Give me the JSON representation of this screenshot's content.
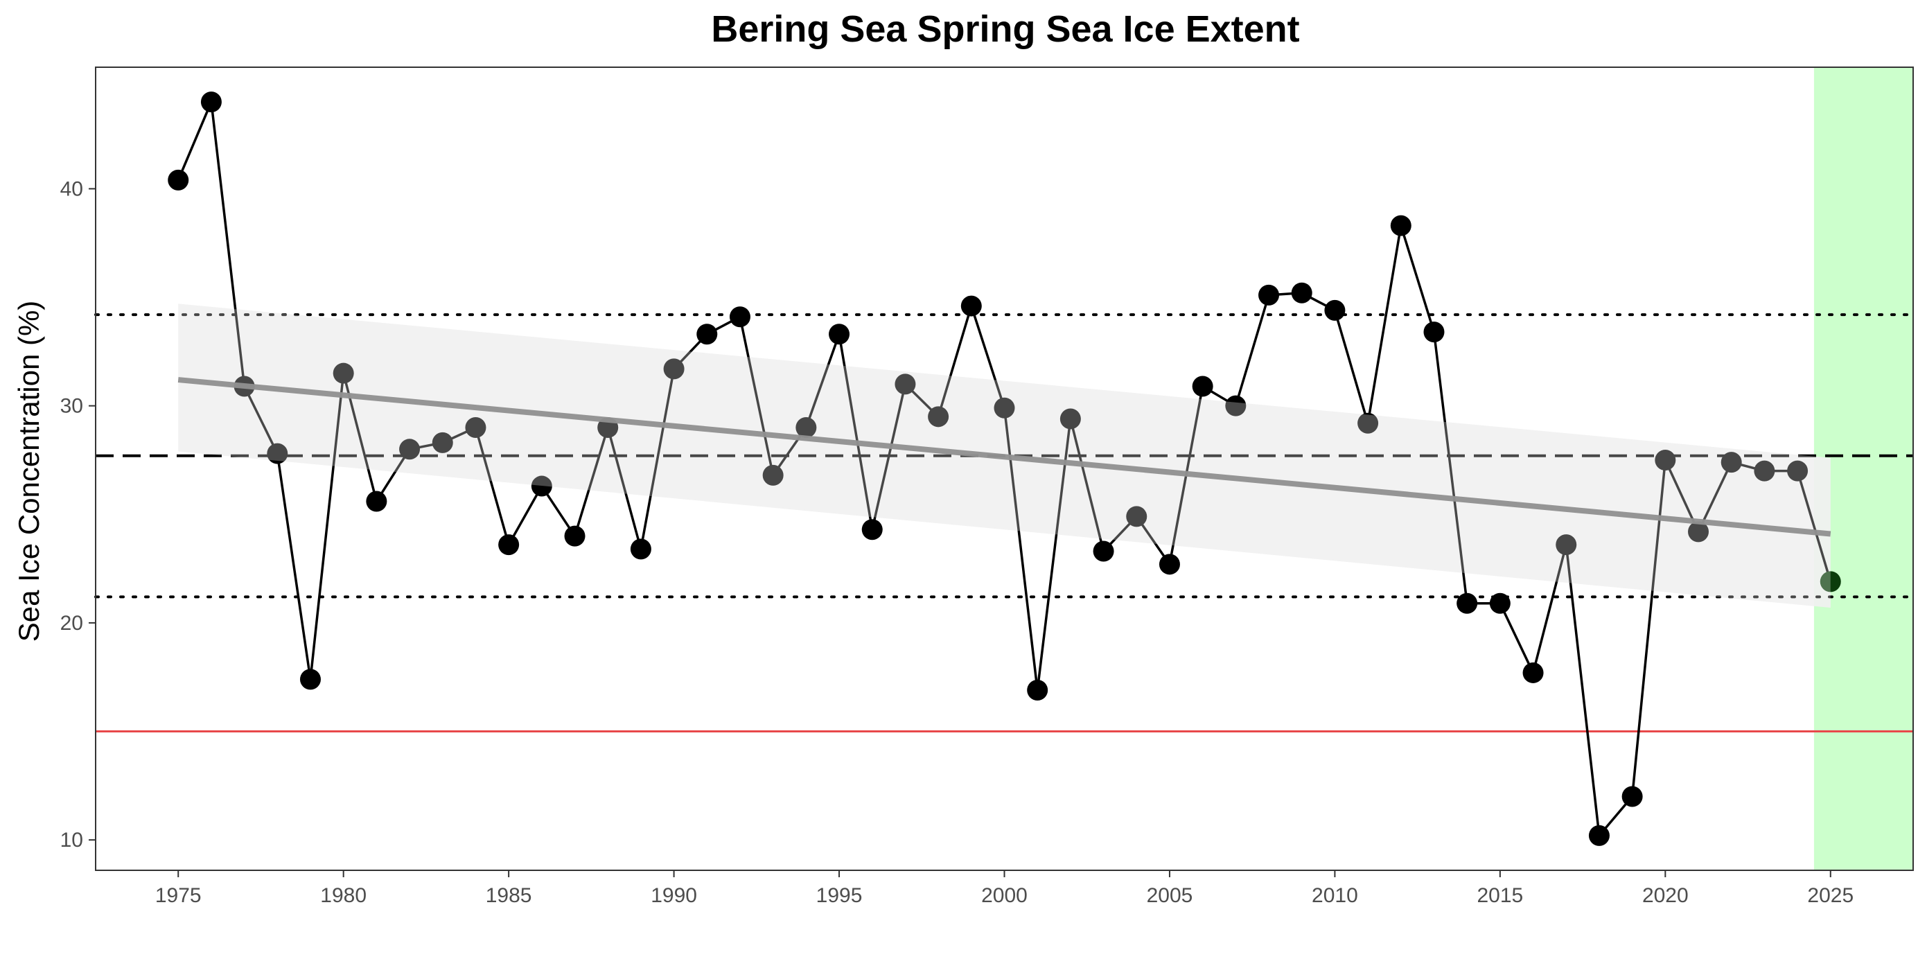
{
  "chart_data": {
    "type": "line",
    "title": "Bering Sea Spring Sea Ice Extent",
    "xlabel": "",
    "ylabel": "Sea Ice Concentration (%)",
    "xlim": [
      1972.5,
      2027.5
    ],
    "ylim": [
      8.6,
      45.6
    ],
    "x_ticks": [
      1975,
      1980,
      1985,
      1990,
      1995,
      2000,
      2005,
      2010,
      2015,
      2020,
      2025
    ],
    "y_ticks": [
      10,
      20,
      30,
      40
    ],
    "grid": false,
    "x": [
      1975,
      1976,
      1977,
      1978,
      1979,
      1980,
      1981,
      1982,
      1983,
      1984,
      1985,
      1986,
      1987,
      1988,
      1989,
      1990,
      1991,
      1992,
      1993,
      1994,
      1995,
      1996,
      1997,
      1998,
      1999,
      2000,
      2001,
      2002,
      2003,
      2004,
      2005,
      2006,
      2007,
      2008,
      2009,
      2010,
      2011,
      2012,
      2013,
      2014,
      2015,
      2016,
      2017,
      2018,
      2019,
      2020,
      2021,
      2022,
      2023,
      2024,
      2025
    ],
    "values": [
      40.4,
      44.0,
      30.9,
      27.8,
      17.4,
      31.5,
      25.6,
      28.0,
      28.3,
      29.0,
      23.6,
      26.3,
      24.0,
      29.0,
      23.4,
      31.7,
      33.3,
      34.1,
      26.8,
      29.0,
      33.3,
      24.3,
      31.0,
      29.5,
      34.6,
      29.9,
      16.9,
      29.4,
      23.3,
      24.9,
      22.7,
      30.9,
      30.0,
      35.1,
      35.2,
      34.4,
      29.2,
      38.3,
      33.4,
      20.9,
      20.9,
      17.7,
      23.6,
      10.2,
      12.0,
      27.5,
      24.2,
      27.4,
      27.0,
      27.0,
      21.9
    ],
    "trend": {
      "x": [
        1975,
        2025
      ],
      "y": [
        31.2,
        24.1
      ],
      "ci_lower": [
        27.9,
        20.7
      ],
      "ci_upper": [
        34.7,
        27.6
      ],
      "color": "#666666",
      "band_color": "#ebebeb"
    },
    "reference_lines": [
      {
        "y": 27.7,
        "style": "dashed",
        "color": "#000000"
      },
      {
        "y": 34.2,
        "style": "dotted",
        "color": "#000000"
      },
      {
        "y": 21.2,
        "style": "dotted",
        "color": "#000000"
      },
      {
        "y": 15.0,
        "style": "solid",
        "color": "#e8484a"
      }
    ],
    "highlight_region": {
      "x_from": 2024.5,
      "x_to": 2027.5,
      "color": "#ccffcc"
    },
    "point_color": "#000000",
    "line_color": "#000000",
    "highlight_point_color": "#0b3d0b"
  }
}
